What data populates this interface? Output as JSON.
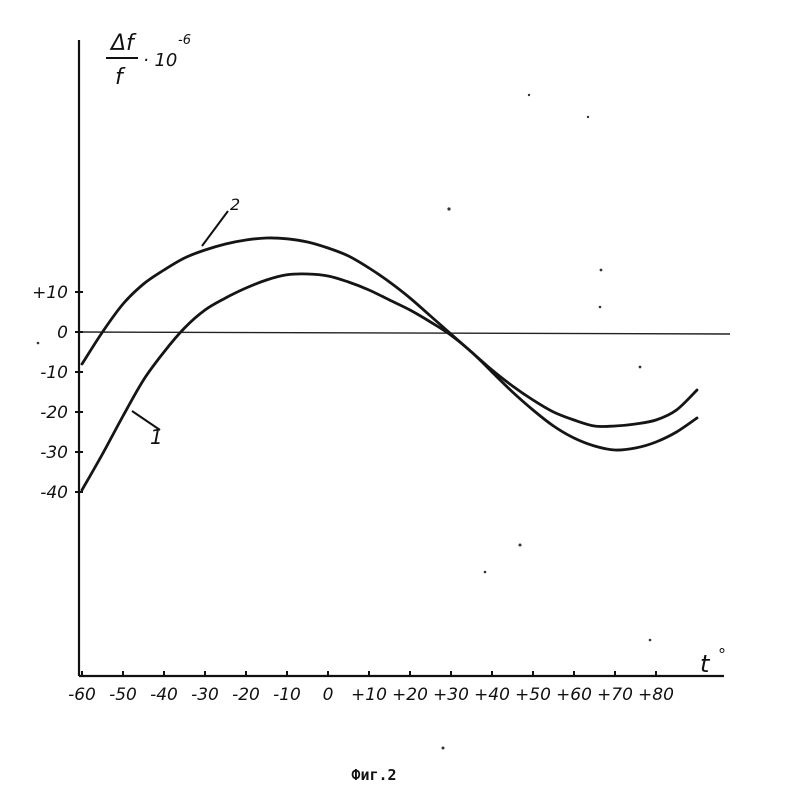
{
  "chart_data": {
    "type": "line",
    "x": [
      -60,
      -55,
      -50,
      -45,
      -40,
      -35,
      -30,
      -25,
      -20,
      -15,
      -10,
      -5,
      0,
      5,
      10,
      15,
      20,
      25,
      30,
      35,
      40,
      45,
      50,
      55,
      60,
      65,
      70,
      75,
      80,
      85,
      90
    ],
    "series": [
      {
        "name": "1",
        "values": [
          -39.5,
          -30.5,
          -21,
          -12,
          -5,
          1,
          5.5,
          8.5,
          11,
          13,
          14.3,
          14.5,
          14,
          12.5,
          10.5,
          8,
          5.5,
          2.5,
          -0.8,
          -5,
          -10,
          -15,
          -19.5,
          -23.5,
          -26.5,
          -28.5,
          -29.5,
          -29,
          -27.5,
          -25,
          -21.5
        ]
      },
      {
        "name": "2",
        "values": [
          -8,
          0,
          7,
          12,
          15.5,
          18.5,
          20.5,
          22,
          23,
          23.5,
          23.3,
          22.5,
          21,
          19,
          16,
          12.5,
          8.5,
          4,
          -0.5,
          -5,
          -9.5,
          -13.5,
          -17,
          -20,
          -22,
          -23.5,
          -23.5,
          -23,
          -22,
          -19.5,
          -14.5
        ]
      }
    ],
    "y_label": {
      "numerator": "Δf",
      "denominator": "f",
      "factor": "· 10",
      "exponent": "-6"
    },
    "x_label": {
      "symbol": "t",
      "unit": "°"
    },
    "x_ticks": [
      "-60",
      "-50",
      "-40",
      "-30",
      "-20",
      "-10",
      "0",
      "+10",
      "+20",
      "+30",
      "+40",
      "+50",
      "+60",
      "+70",
      "+80"
    ],
    "x_tick_values": [
      -60,
      -50,
      -40,
      -30,
      -20,
      -10,
      0,
      10,
      20,
      30,
      40,
      50,
      60,
      70,
      80
    ],
    "y_ticks": [
      {
        "label": "+10",
        "value": 10
      },
      {
        "label": "0",
        "value": 0
      },
      {
        "label": "-10",
        "value": -10
      },
      {
        "label": "-20",
        "value": -20
      },
      {
        "label": "-30",
        "value": -30
      },
      {
        "label": "-40",
        "value": -40
      }
    ],
    "caption": "Фиг.2",
    "xlim": [
      -60,
      90
    ],
    "grid": false
  },
  "annotations": {
    "curve1": "1",
    "curve2": "2"
  }
}
